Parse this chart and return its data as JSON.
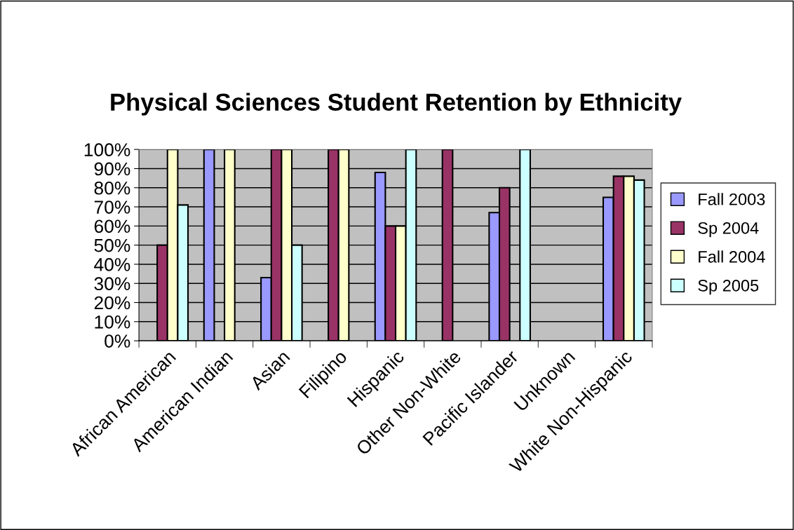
{
  "chart_data": {
    "type": "bar",
    "title": "Physical Sciences Student Retention by Ethnicity",
    "categories": [
      "African American",
      "American Indian",
      "Asian",
      "Filipino",
      "Hispanic",
      "Other Non-White",
      "Pacific Islander",
      "Unknown",
      "White Non-Hispanic"
    ],
    "series": [
      {
        "name": "Fall 2003",
        "color": "#9999ff",
        "values": [
          null,
          100,
          33,
          null,
          88,
          null,
          67,
          null,
          75
        ]
      },
      {
        "name": "Sp 2004",
        "color": "#993366",
        "values": [
          50,
          null,
          100,
          100,
          60,
          100,
          80,
          null,
          86
        ]
      },
      {
        "name": "Fall 2004",
        "color": "#ffffcc",
        "values": [
          100,
          100,
          100,
          100,
          60,
          null,
          null,
          null,
          86
        ]
      },
      {
        "name": "Sp 2005",
        "color": "#ccffff",
        "values": [
          71,
          null,
          50,
          null,
          100,
          null,
          100,
          null,
          84
        ]
      }
    ],
    "ylim": [
      0,
      100
    ],
    "yticks": [
      {
        "value": 0,
        "label": "0%"
      },
      {
        "value": 10,
        "label": "10%"
      },
      {
        "value": 20,
        "label": "20%"
      },
      {
        "value": 30,
        "label": "30%"
      },
      {
        "value": 40,
        "label": "40%"
      },
      {
        "value": 50,
        "label": "50%"
      },
      {
        "value": 60,
        "label": "60%"
      },
      {
        "value": 70,
        "label": "70%"
      },
      {
        "value": 80,
        "label": "80%"
      },
      {
        "value": 90,
        "label": "90%"
      },
      {
        "value": 100,
        "label": "100%"
      }
    ],
    "grid": "y",
    "legend": "right"
  }
}
